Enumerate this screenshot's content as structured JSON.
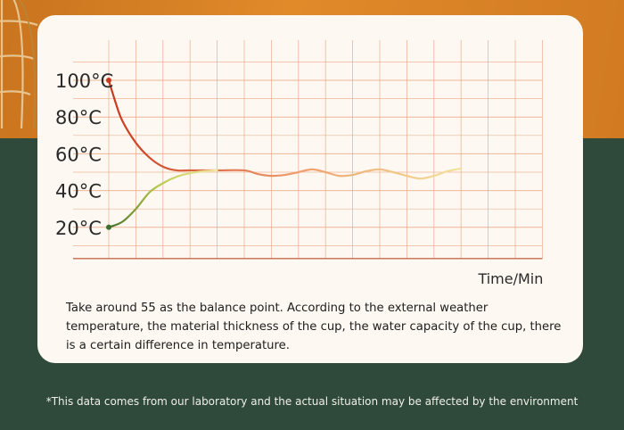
{
  "chart_data": {
    "type": "line",
    "ytick_labels": [
      "100°C",
      "80°C",
      "60°C",
      "40°C",
      "20°C"
    ],
    "yticks": [
      100,
      80,
      60,
      40,
      20
    ],
    "ylim": [
      3,
      100
    ],
    "xlabel": "Time/Min",
    "xlim": [
      0,
      16
    ],
    "grid": true,
    "series": [
      {
        "color_start": "#c8391f",
        "color_end": "#f2e39a",
        "x": [
          0,
          0.25,
          0.5,
          1,
          1.5,
          2,
          2.5,
          3,
          4,
          5,
          5.5,
          6,
          6.5,
          7,
          7.5,
          8,
          8.5,
          9,
          9.5,
          10,
          10.5,
          11,
          11.5,
          12,
          12.5,
          13
        ],
        "y": [
          100,
          88,
          78,
          66,
          58,
          53,
          51,
          51,
          51,
          51,
          49,
          48,
          48.5,
          50,
          51.5,
          50,
          48,
          48.5,
          50.5,
          51.5,
          50,
          48,
          46.5,
          48,
          50.5,
          52
        ]
      },
      {
        "color_start": "#3f6e2c",
        "color_end": "#f3e7a2",
        "x": [
          0,
          0.5,
          1,
          1.5,
          2,
          2.5,
          3,
          3.5,
          4
        ],
        "y": [
          20,
          23,
          30,
          39,
          44,
          47.5,
          49.5,
          50.5,
          51
        ]
      }
    ]
  },
  "description": "Take around 55 as the balance point. According to the external weather temperature, the material thickness of the cup, the water capacity of the cup, there is a certain difference in temperature.",
  "footnote": "*This data comes from our laboratory and the actual situation may be affected by the environment",
  "colors": {
    "background_orange": "#d9822a",
    "background_green": "#2f4a3a",
    "card": "#fdf8f1",
    "grid": "#e9a07a",
    "axis": "#c76a48",
    "hot_start": "#c8391f",
    "cold_start": "#3f6e2c"
  }
}
